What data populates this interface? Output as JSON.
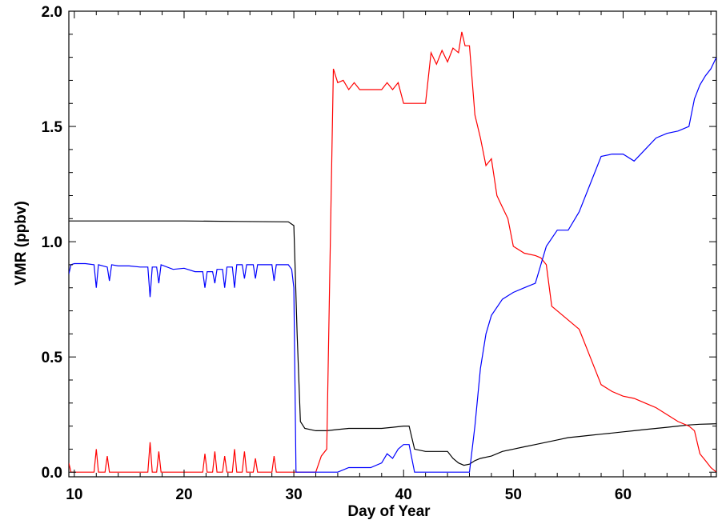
{
  "chart_data": {
    "type": "line",
    "title": "",
    "xlabel": "Day of Year",
    "ylabel": "VMR (ppbv)",
    "xlim": [
      9.5,
      68.5
    ],
    "ylim": [
      -0.02,
      2.0
    ],
    "x_ticks": [
      10,
      20,
      30,
      40,
      50,
      60
    ],
    "x_tick_labels": [
      "10",
      "20",
      "30",
      "40",
      "50",
      "60"
    ],
    "y_ticks": [
      0.0,
      0.5,
      1.0,
      1.5,
      2.0
    ],
    "y_tick_labels": [
      "0.0",
      "0.5",
      "1.0",
      "1.5",
      "2.0"
    ],
    "grid": false,
    "legend": "none",
    "series": [
      {
        "color": "#000000",
        "x": [
          9.5,
          15,
          20,
          25,
          29.5,
          30.0,
          30.3,
          30.6,
          31,
          32,
          33,
          34,
          35,
          36,
          37,
          38,
          39,
          40,
          40.5,
          41,
          42,
          43,
          44,
          44.5,
          45,
          45.5,
          46,
          46.5,
          47,
          48,
          49,
          50,
          51,
          52,
          53,
          54,
          55,
          56,
          57,
          58,
          59,
          60,
          61,
          62,
          63,
          64,
          65,
          66,
          67,
          68.5
        ],
        "y": [
          1.09,
          1.09,
          1.09,
          1.088,
          1.086,
          1.07,
          0.6,
          0.22,
          0.19,
          0.18,
          0.18,
          0.185,
          0.19,
          0.19,
          0.19,
          0.19,
          0.195,
          0.2,
          0.2,
          0.1,
          0.09,
          0.09,
          0.09,
          0.06,
          0.04,
          0.03,
          0.035,
          0.05,
          0.06,
          0.07,
          0.09,
          0.1,
          0.11,
          0.12,
          0.13,
          0.14,
          0.15,
          0.155,
          0.16,
          0.165,
          0.17,
          0.175,
          0.18,
          0.185,
          0.19,
          0.195,
          0.2,
          0.205,
          0.208,
          0.21
        ]
      },
      {
        "color": "#ff0000",
        "x": [
          9.5,
          9.7,
          10,
          11,
          11.8,
          12,
          12.2,
          12.8,
          13,
          13.2,
          14,
          16.7,
          16.9,
          17.1,
          17.5,
          17.7,
          17.9,
          19,
          21.7,
          21.9,
          22.1,
          22.6,
          22.8,
          23.0,
          23.5,
          23.7,
          23.9,
          24.4,
          24.6,
          24.8,
          25.3,
          25.5,
          25.7,
          26.3,
          26.5,
          26.7,
          28,
          28.2,
          28.4,
          29,
          30,
          31,
          32,
          32.5,
          33,
          33.4,
          33.6,
          34,
          34.5,
          35,
          35.5,
          36,
          37,
          38,
          38.5,
          39,
          39.5,
          40,
          41,
          42,
          42.5,
          43,
          43.5,
          44,
          44.5,
          45,
          45.3,
          45.6,
          46,
          46.5,
          47,
          47.5,
          48,
          48.5,
          49,
          49.5,
          50,
          51,
          52,
          52.5,
          53,
          53.5,
          54,
          55,
          56,
          57,
          58,
          59,
          60,
          61,
          62,
          63,
          64,
          65,
          66,
          66.5,
          67,
          67.5,
          68,
          68.5
        ],
        "y": [
          0.04,
          0.0,
          0.0,
          0.0,
          0.0,
          0.1,
          0.0,
          0.0,
          0.07,
          0.0,
          0.0,
          0.0,
          0.13,
          0.0,
          0.0,
          0.09,
          0.0,
          0.0,
          0.0,
          0.08,
          0.0,
          0.0,
          0.09,
          0.0,
          0.0,
          0.07,
          0.0,
          0.0,
          0.1,
          0.0,
          0.0,
          0.09,
          0.0,
          0.0,
          0.06,
          0.0,
          0.0,
          0.07,
          0.0,
          0.0,
          0.0,
          0.0,
          0.0,
          0.07,
          0.1,
          1.2,
          1.75,
          1.69,
          1.7,
          1.66,
          1.69,
          1.66,
          1.66,
          1.66,
          1.69,
          1.66,
          1.69,
          1.6,
          1.6,
          1.6,
          1.82,
          1.77,
          1.83,
          1.78,
          1.84,
          1.82,
          1.91,
          1.85,
          1.85,
          1.55,
          1.45,
          1.33,
          1.36,
          1.2,
          1.15,
          1.1,
          0.98,
          0.95,
          0.94,
          0.93,
          0.9,
          0.72,
          0.7,
          0.66,
          0.62,
          0.5,
          0.38,
          0.35,
          0.33,
          0.32,
          0.3,
          0.28,
          0.25,
          0.22,
          0.2,
          0.18,
          0.08,
          0.05,
          0.02,
          0.0
        ]
      },
      {
        "color": "#0000ff",
        "x": [
          9.5,
          9.7,
          10,
          11,
          11.8,
          12,
          12.2,
          13,
          13.2,
          13.4,
          14,
          15,
          16,
          16.7,
          16.9,
          17.1,
          17.5,
          17.7,
          17.9,
          19,
          20,
          21,
          21.7,
          21.9,
          22.1,
          22.6,
          22.8,
          23.0,
          23.5,
          23.7,
          23.9,
          24.4,
          24.6,
          24.8,
          25.3,
          25.5,
          25.7,
          26.3,
          26.5,
          26.7,
          28,
          28.2,
          28.4,
          29,
          29.5,
          29.8,
          30.0,
          30.2,
          31,
          32,
          33,
          34,
          35,
          36,
          37,
          38,
          38.5,
          39,
          39.5,
          40,
          40.5,
          41,
          42,
          43,
          44,
          45,
          45.6,
          46,
          46.5,
          47,
          47.5,
          48,
          49,
          50,
          51,
          52,
          53,
          54,
          55,
          56,
          57,
          58,
          59,
          60,
          61,
          62,
          63,
          64,
          65,
          66,
          66.5,
          67,
          67.5,
          68,
          68.5
        ],
        "y": [
          0.86,
          0.9,
          0.905,
          0.905,
          0.9,
          0.8,
          0.9,
          0.89,
          0.83,
          0.9,
          0.895,
          0.895,
          0.89,
          0.89,
          0.76,
          0.89,
          0.89,
          0.82,
          0.9,
          0.88,
          0.885,
          0.87,
          0.87,
          0.8,
          0.87,
          0.87,
          0.82,
          0.88,
          0.88,
          0.8,
          0.89,
          0.89,
          0.8,
          0.9,
          0.9,
          0.84,
          0.9,
          0.9,
          0.84,
          0.9,
          0.9,
          0.83,
          0.9,
          0.9,
          0.9,
          0.88,
          0.8,
          0.0,
          0.0,
          0.0,
          0.0,
          0.0,
          0.02,
          0.02,
          0.02,
          0.04,
          0.08,
          0.06,
          0.1,
          0.12,
          0.12,
          0.0,
          0.0,
          0.0,
          0.0,
          0.0,
          0.0,
          0.0,
          0.2,
          0.45,
          0.6,
          0.68,
          0.75,
          0.78,
          0.8,
          0.82,
          0.98,
          1.05,
          1.05,
          1.13,
          1.25,
          1.37,
          1.38,
          1.38,
          1.35,
          1.4,
          1.45,
          1.47,
          1.48,
          1.5,
          1.62,
          1.68,
          1.72,
          1.75,
          1.8
        ]
      }
    ]
  }
}
